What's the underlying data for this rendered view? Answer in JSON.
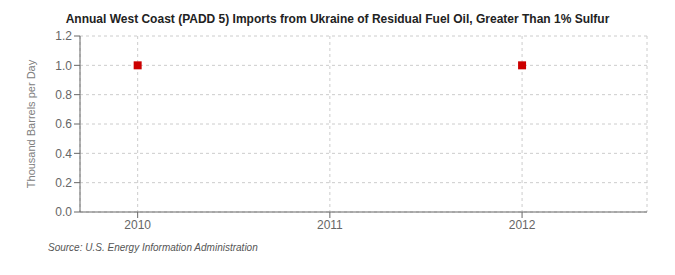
{
  "chart_data": {
    "type": "scatter",
    "title": "Annual West Coast (PADD 5) Imports from Ukraine of Residual Fuel Oil, Greater Than 1% Sulfur",
    "ylabel": "Thousand Barrels per Day",
    "annotations": [
      "Source: U.S. Energy Information Administration"
    ],
    "x": [
      2010,
      2012
    ],
    "values": [
      1.0,
      1.0
    ],
    "color": "#cc0000",
    "marker": "square",
    "xlim": [
      2009.7,
      2012.65
    ],
    "xticks": [
      2010,
      2011,
      2012
    ],
    "ylim": [
      0.0,
      1.2
    ],
    "yticks": [
      {
        "value": 0.0,
        "label": "0.0"
      },
      0.2,
      0.4,
      0.6,
      0.8,
      {
        "value": 1.0,
        "label": "1.0"
      },
      1.2
    ],
    "grid": true
  }
}
